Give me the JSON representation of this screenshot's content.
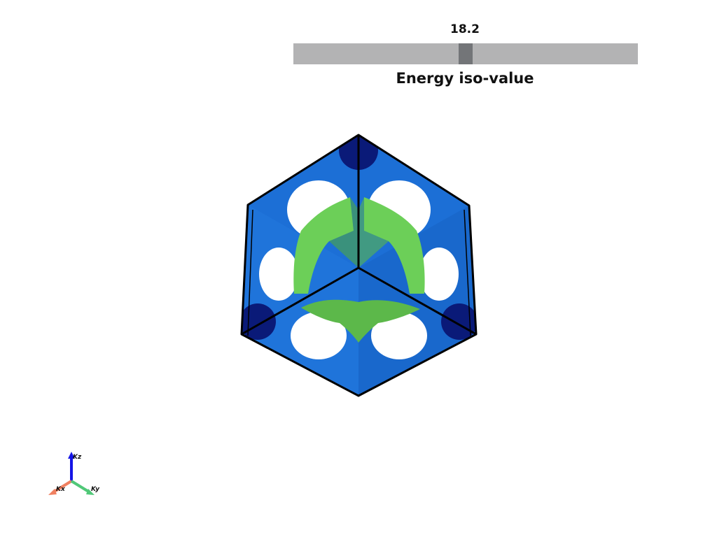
{
  "slider": {
    "value": "18.2",
    "title": "Energy iso-value",
    "fraction": 0.5
  },
  "scene": {
    "surfaces": [
      {
        "name": "outer iso-surface",
        "color": "#1c6fd6"
      },
      {
        "name": "inner iso-surface",
        "color": "#6ccf58"
      }
    ],
    "corner_cap_color": "#0a1a78",
    "frame_color": "#000000"
  },
  "axes_widget": {
    "z_label": "Kz",
    "x_label": "Kx",
    "y_label": "Ky",
    "z_color": "#1515e6",
    "x_color": "#f08060",
    "y_color": "#50c878"
  }
}
